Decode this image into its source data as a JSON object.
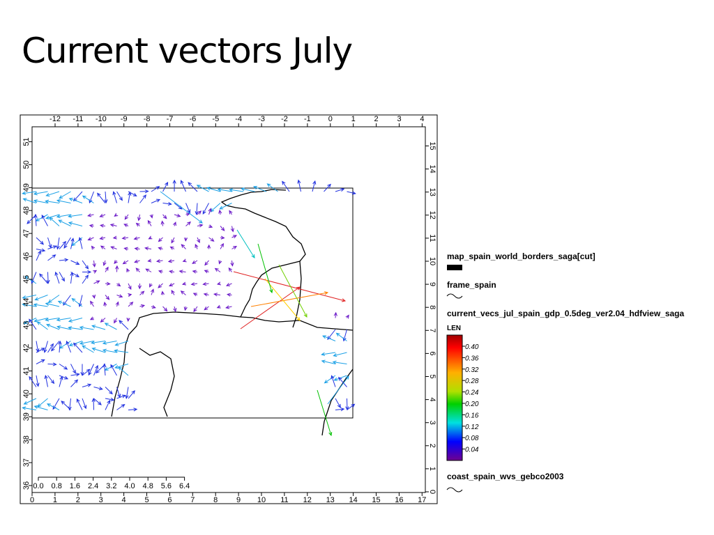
{
  "title": "Current vectors July",
  "map": {
    "top_ticks": [
      "-12",
      "-11",
      "-10",
      "-9",
      "-8",
      "-7",
      "-6",
      "-5",
      "-4",
      "-3",
      "-2",
      "-1",
      "0",
      "1",
      "2",
      "3",
      "4"
    ],
    "bottom_ticks": [
      "0",
      "1",
      "2",
      "3",
      "4",
      "5",
      "6",
      "7",
      "8",
      "9",
      "10",
      "11",
      "12",
      "13",
      "14",
      "15",
      "16",
      "17"
    ],
    "left_ticks": [
      "36",
      "37",
      "38",
      "39",
      "40",
      "41",
      "42",
      "43",
      "44",
      "45",
      "46",
      "47",
      "48",
      "49",
      "50",
      "51"
    ],
    "right_ticks": [
      "0",
      "1",
      "2",
      "3",
      "4",
      "5",
      "6",
      "7",
      "8",
      "9",
      "10",
      "11",
      "12",
      "13",
      "14",
      "15"
    ],
    "scale_bar": [
      "0.0",
      "0.8",
      "1.6",
      "2.4",
      "3.2",
      "4.0",
      "4.8",
      "5.6",
      "6.4"
    ]
  },
  "legend": {
    "borders": "map_spain_world_borders_saga[cut]",
    "frame": "frame_spain",
    "vectors": "current_vecs_jul_spain_gdp_0.5deg_ver2.04_hdfview_saga",
    "colorbar_title": "LEN",
    "colorbar_labels": [
      "0.40",
      "0.36",
      "0.32",
      "0.28",
      "0.24",
      "0.20",
      "0.16",
      "0.12",
      "0.08",
      "0.04"
    ],
    "coast": "coast_spain_wvs_gebco2003"
  }
}
